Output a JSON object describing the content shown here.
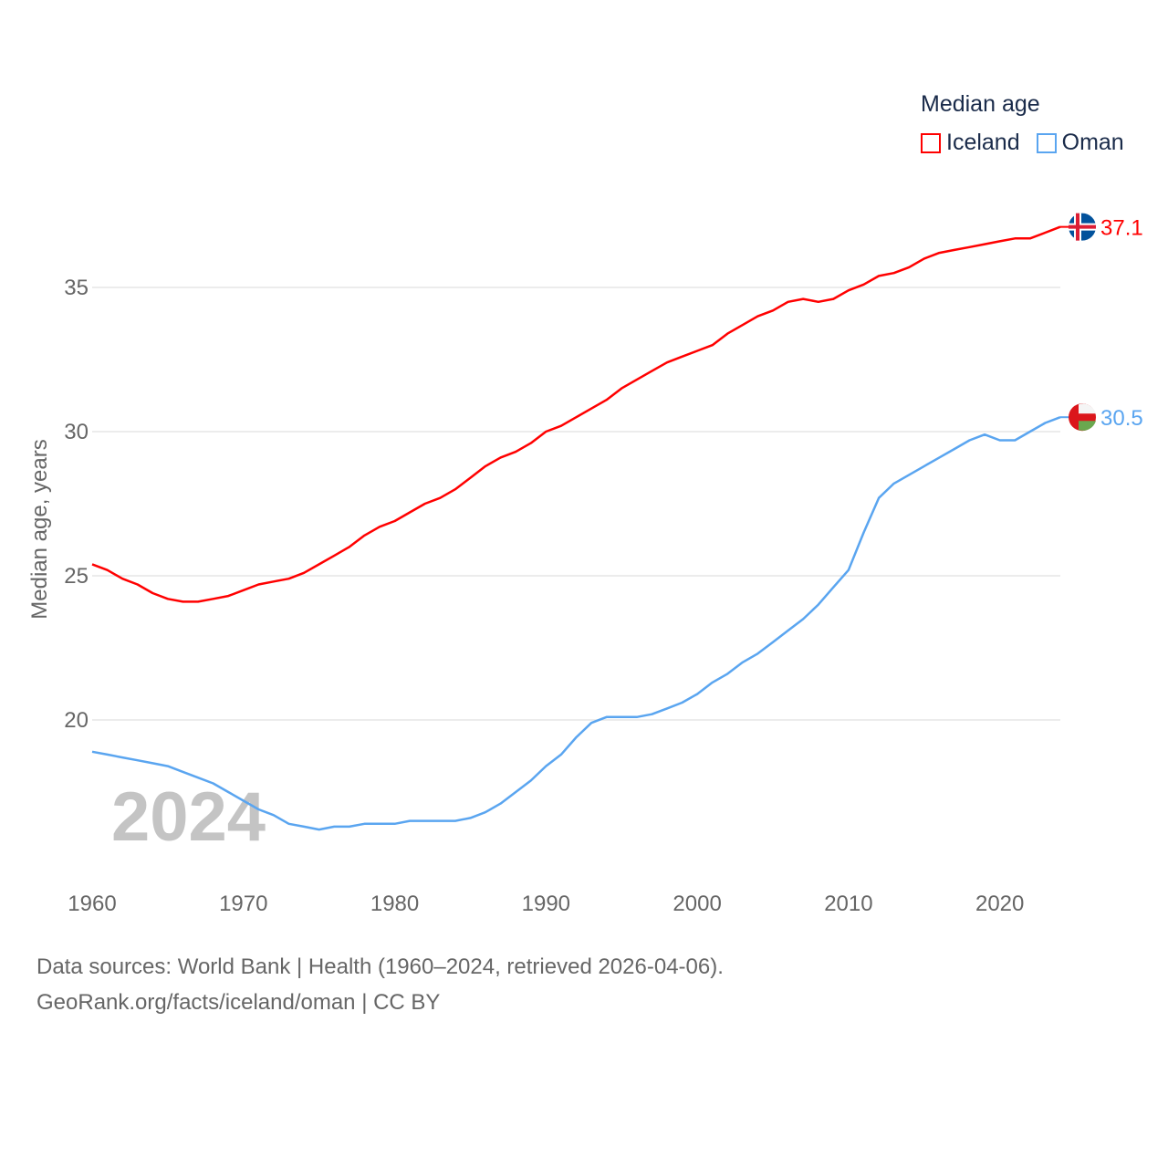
{
  "chart_data": {
    "type": "line",
    "title": "",
    "legend_title": "Median age",
    "legend_position": "top-right",
    "ylabel": "Median age, years",
    "xlabel": "",
    "xlim": [
      1960,
      2024
    ],
    "ylim": [
      14.6,
      38
    ],
    "yticks": [
      20,
      25,
      30,
      35
    ],
    "xticks": [
      1960,
      1970,
      1980,
      1990,
      2000,
      2010,
      2020
    ],
    "grid": true,
    "year_watermark": "2024",
    "x": [
      1960,
      1961,
      1962,
      1963,
      1964,
      1965,
      1966,
      1967,
      1968,
      1969,
      1970,
      1971,
      1972,
      1973,
      1974,
      1975,
      1976,
      1977,
      1978,
      1979,
      1980,
      1981,
      1982,
      1983,
      1984,
      1985,
      1986,
      1987,
      1988,
      1989,
      1990,
      1991,
      1992,
      1993,
      1994,
      1995,
      1996,
      1997,
      1998,
      1999,
      2000,
      2001,
      2002,
      2003,
      2004,
      2005,
      2006,
      2007,
      2008,
      2009,
      2010,
      2011,
      2012,
      2013,
      2014,
      2015,
      2016,
      2017,
      2018,
      2019,
      2020,
      2021,
      2022,
      2023,
      2024
    ],
    "series": [
      {
        "name": "Iceland",
        "color": "#ff0000",
        "end_label": "37.1",
        "values": [
          25.4,
          25.2,
          24.9,
          24.7,
          24.4,
          24.2,
          24.1,
          24.1,
          24.2,
          24.3,
          24.5,
          24.7,
          24.8,
          24.9,
          25.1,
          25.4,
          25.7,
          26.0,
          26.4,
          26.7,
          26.9,
          27.2,
          27.5,
          27.7,
          28.0,
          28.4,
          28.8,
          29.1,
          29.3,
          29.6,
          30.0,
          30.2,
          30.5,
          30.8,
          31.1,
          31.5,
          31.8,
          32.1,
          32.4,
          32.6,
          32.8,
          33.0,
          33.4,
          33.7,
          34.0,
          34.2,
          34.5,
          34.6,
          34.5,
          34.6,
          34.9,
          35.1,
          35.4,
          35.5,
          35.7,
          36.0,
          36.2,
          36.3,
          36.4,
          36.5,
          36.6,
          36.7,
          36.7,
          36.9,
          37.1
        ]
      },
      {
        "name": "Oman",
        "color": "#5aa5f0",
        "end_label": "30.5",
        "values": [
          18.9,
          18.8,
          18.7,
          18.6,
          18.5,
          18.4,
          18.2,
          18.0,
          17.8,
          17.5,
          17.2,
          16.9,
          16.7,
          16.4,
          16.3,
          16.2,
          16.3,
          16.3,
          16.4,
          16.4,
          16.4,
          16.5,
          16.5,
          16.5,
          16.5,
          16.6,
          16.8,
          17.1,
          17.5,
          17.9,
          18.4,
          18.8,
          19.4,
          19.9,
          20.1,
          20.1,
          20.1,
          20.2,
          20.4,
          20.6,
          20.9,
          21.3,
          21.6,
          22.0,
          22.3,
          22.7,
          23.1,
          23.5,
          24.0,
          24.6,
          25.2,
          26.5,
          27.7,
          28.2,
          28.5,
          28.8,
          29.1,
          29.4,
          29.7,
          29.9,
          29.7,
          29.7,
          30.0,
          30.3,
          30.5
        ]
      }
    ]
  },
  "footer": {
    "line1": "Data sources: World Bank | Health (1960–2024, retrieved 2026-04-06).",
    "line2": "GeoRank.org/facts/iceland/oman | CC BY"
  }
}
